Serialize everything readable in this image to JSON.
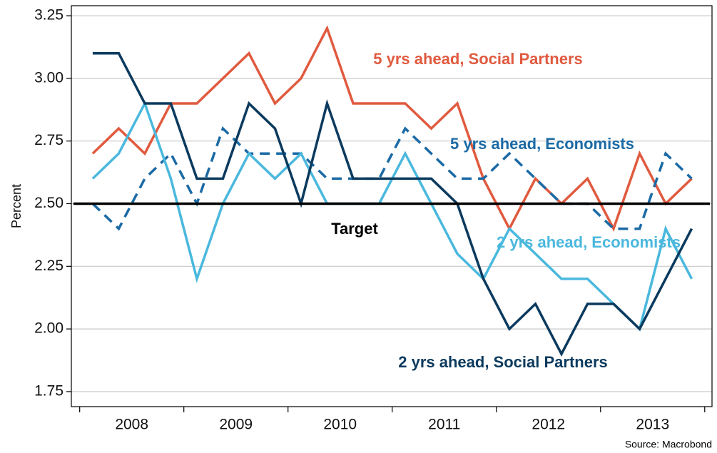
{
  "chart_data": {
    "type": "line",
    "y_label": "Percent",
    "source": "Source: Macrobond",
    "x": [
      2008.125,
      2008.375,
      2008.625,
      2008.875,
      2009.125,
      2009.375,
      2009.625,
      2009.875,
      2010.125,
      2010.375,
      2010.625,
      2010.875,
      2011.125,
      2011.375,
      2011.625,
      2011.875,
      2012.125,
      2012.375,
      2012.625,
      2012.875,
      2013.125,
      2013.375,
      2013.625,
      2013.875
    ],
    "xlim": [
      2007.92,
      2014.07
    ],
    "xticks": [
      {
        "value": 2008.5,
        "label": "2008"
      },
      {
        "value": 2009.5,
        "label": "2009"
      },
      {
        "value": 2010.5,
        "label": "2010"
      },
      {
        "value": 2011.5,
        "label": "2011"
      },
      {
        "value": 2012.5,
        "label": "2012"
      },
      {
        "value": 2013.5,
        "label": "2013"
      }
    ],
    "xminorticks": [
      2008,
      2009,
      2010,
      2011,
      2012,
      2013,
      2014
    ],
    "ylim": [
      1.69,
      3.29
    ],
    "yticks": [
      {
        "value": 1.75,
        "label": "1.75"
      },
      {
        "value": 2,
        "label": "2.00"
      },
      {
        "value": 2.25,
        "label": "2.25"
      },
      {
        "value": 2.5,
        "label": "2.50"
      },
      {
        "value": 2.75,
        "label": "2.75"
      },
      {
        "value": 3,
        "label": "3.00"
      },
      {
        "value": 3.25,
        "label": "3.25"
      }
    ],
    "grid": true,
    "target": {
      "value": 2.5,
      "label": "Target",
      "color": "#000000"
    },
    "series": [
      {
        "name": "5 yrs ahead, Social Partners",
        "color": "#e05a3f",
        "dashed": false,
        "values": [
          2.7,
          2.8,
          2.7,
          2.9,
          2.9,
          3.0,
          3.1,
          2.9,
          3.0,
          3.2,
          2.9,
          2.9,
          2.9,
          2.8,
          2.9,
          2.6,
          2.4,
          2.6,
          2.5,
          2.6,
          2.4,
          2.7,
          2.5,
          2.6
        ]
      },
      {
        "name": "5 yrs ahead, Economists",
        "color": "#1b6aa5",
        "dashed": true,
        "values": [
          2.5,
          2.4,
          2.6,
          2.7,
          2.5,
          2.8,
          2.7,
          2.7,
          2.7,
          2.6,
          2.6,
          2.6,
          2.8,
          2.7,
          2.6,
          2.6,
          2.7,
          2.6,
          2.5,
          2.5,
          2.4,
          2.4,
          2.7,
          2.6
        ]
      },
      {
        "name": "2 yrs ahead, Economists",
        "color": "#4ab8dd",
        "dashed": false,
        "values": [
          2.6,
          2.7,
          2.9,
          2.6,
          2.2,
          2.5,
          2.7,
          2.6,
          2.7,
          2.5,
          2.5,
          2.5,
          2.7,
          2.5,
          2.3,
          2.2,
          2.4,
          2.3,
          2.2,
          2.2,
          2.1,
          2.0,
          2.4,
          2.2
        ]
      },
      {
        "name": "2 yrs ahead, Social Partners",
        "color": "#0b3a5e",
        "dashed": false,
        "values": [
          3.1,
          3.1,
          2.9,
          2.9,
          2.6,
          2.6,
          2.9,
          2.8,
          2.5,
          2.9,
          2.6,
          2.6,
          2.6,
          2.6,
          2.5,
          2.2,
          2.0,
          2.1,
          1.9,
          2.1,
          2.1,
          2.0,
          2.2,
          2.4
        ]
      }
    ]
  }
}
